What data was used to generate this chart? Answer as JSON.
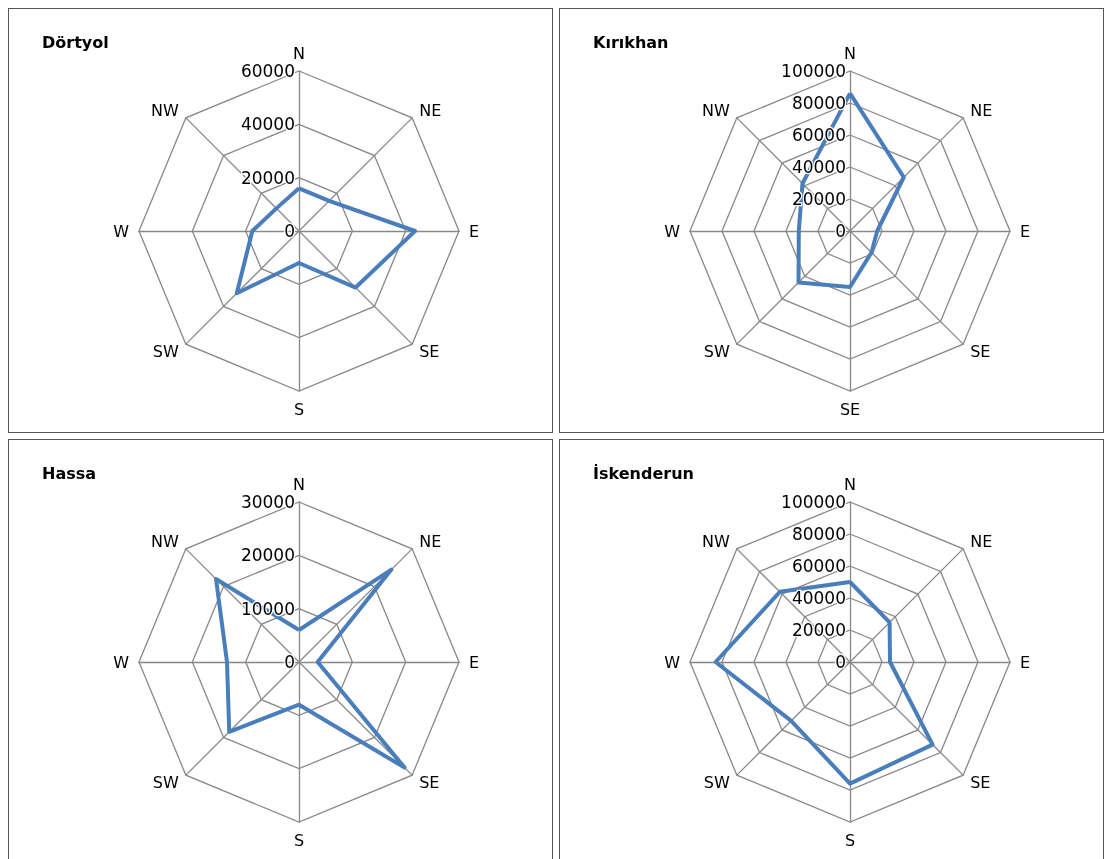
{
  "chart_data": [
    {
      "type": "radar",
      "title": "Dörtyol",
      "categories": [
        "N",
        "NE",
        "E",
        "SE",
        "S",
        "SW",
        "W",
        "NW"
      ],
      "ylim": [
        0,
        60000
      ],
      "yticks": [
        0,
        20000,
        40000,
        60000
      ],
      "series": [
        {
          "color": "#4a7ebb",
          "values": [
            16000,
            16000,
            43500,
            30000,
            12000,
            33000,
            17500,
            12000
          ]
        }
      ]
    },
    {
      "type": "radar",
      "title": "Kırıkhan",
      "categories": [
        "N",
        "NE",
        "E",
        "SE",
        "SE",
        "SW",
        "W",
        "NW"
      ],
      "ylim": [
        0,
        100000
      ],
      "yticks": [
        0,
        20000,
        40000,
        60000,
        80000,
        100000
      ],
      "series": [
        {
          "color": "#4a7ebb",
          "values": [
            86000,
            47500,
            17000,
            19000,
            35000,
            45500,
            32000,
            42000
          ]
        }
      ]
    },
    {
      "type": "radar",
      "title": "Hassa",
      "categories": [
        "N",
        "NE",
        "E",
        "SE",
        "S",
        "SW",
        "W",
        "NW"
      ],
      "ylim": [
        0,
        30000
      ],
      "yticks": [
        0,
        10000,
        20000,
        30000
      ],
      "series": [
        {
          "color": "#4a7ebb",
          "values": [
            6000,
            24500,
            3500,
            28000,
            8000,
            18500,
            13500,
            22000
          ]
        }
      ]
    },
    {
      "type": "radar",
      "title": "İskenderun",
      "categories": [
        "N",
        "NE",
        "E",
        "SE",
        "S",
        "SW",
        "W",
        "NW"
      ],
      "ylim": [
        0,
        100000
      ],
      "yticks": [
        0,
        20000,
        40000,
        60000,
        80000,
        100000
      ],
      "series": [
        {
          "color": "#4a7ebb",
          "values": [
            50000,
            35000,
            25000,
            73000,
            76000,
            52000,
            84000,
            62000
          ]
        }
      ]
    }
  ]
}
